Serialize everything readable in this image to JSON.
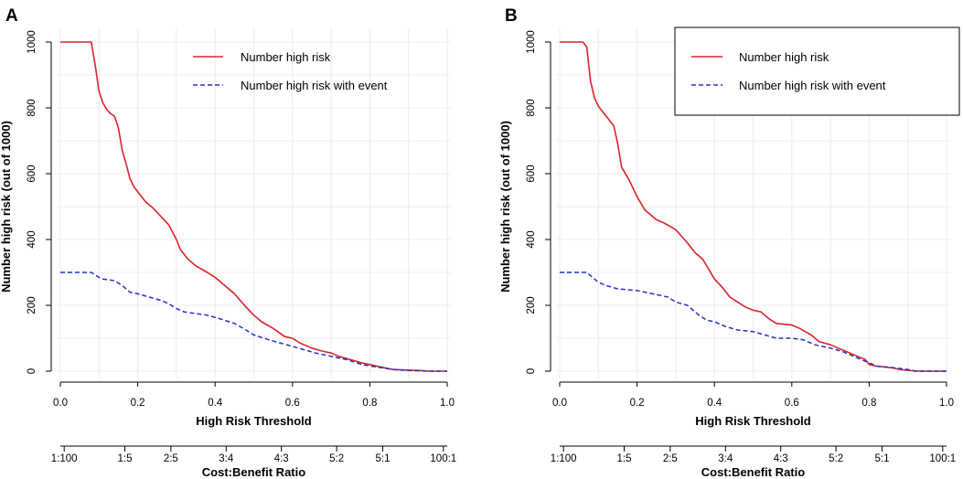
{
  "figure": {
    "y_axis_title": "Number high risk (out of 1000)",
    "x_axis_title": "High Risk Threshold",
    "cost_axis_title": "Cost:Benefit Ratio"
  },
  "chart_data": [
    {
      "type": "line",
      "panel_label": "A",
      "legend_box": false,
      "legend": [
        "Number high risk",
        "Number high risk with event"
      ],
      "xlabel": "High Risk Threshold",
      "ylabel": "Number high risk (out of 1000)",
      "xlim": [
        0,
        1
      ],
      "ylim": [
        0,
        1000
      ],
      "x_ticks": [
        "0.0",
        "0.2",
        "0.4",
        "0.6",
        "0.8",
        "1.0"
      ],
      "y_ticks": [
        "0",
        "200",
        "400",
        "600",
        "800",
        "1000"
      ],
      "cost_ticks": [
        "1:100",
        "1:5",
        "2:5",
        "3:4",
        "4:3",
        "5:2",
        "5:1",
        "100:1"
      ],
      "series": [
        {
          "name": "Number high risk",
          "color": "#d9232a",
          "style": "solid",
          "points": [
            [
              0,
              1000
            ],
            [
              0.05,
              1000
            ],
            [
              0.08,
              1000
            ],
            [
              0.09,
              930
            ],
            [
              0.1,
              850
            ],
            [
              0.11,
              815
            ],
            [
              0.12,
              795
            ],
            [
              0.13,
              782
            ],
            [
              0.14,
              775
            ],
            [
              0.15,
              740
            ],
            [
              0.16,
              670
            ],
            [
              0.17,
              630
            ],
            [
              0.18,
              585
            ],
            [
              0.19,
              560
            ],
            [
              0.2,
              545
            ],
            [
              0.22,
              515
            ],
            [
              0.24,
              495
            ],
            [
              0.26,
              470
            ],
            [
              0.28,
              445
            ],
            [
              0.3,
              400
            ],
            [
              0.31,
              370
            ],
            [
              0.33,
              340
            ],
            [
              0.35,
              320
            ],
            [
              0.38,
              300
            ],
            [
              0.4,
              285
            ],
            [
              0.42,
              265
            ],
            [
              0.45,
              235
            ],
            [
              0.48,
              195
            ],
            [
              0.5,
              170
            ],
            [
              0.52,
              150
            ],
            [
              0.55,
              130
            ],
            [
              0.58,
              105
            ],
            [
              0.6,
              100
            ],
            [
              0.62,
              85
            ],
            [
              0.65,
              70
            ],
            [
              0.68,
              60
            ],
            [
              0.7,
              55
            ],
            [
              0.72,
              45
            ],
            [
              0.75,
              35
            ],
            [
              0.78,
              25
            ],
            [
              0.8,
              20
            ],
            [
              0.83,
              12
            ],
            [
              0.86,
              5
            ],
            [
              0.9,
              3
            ],
            [
              0.93,
              2
            ],
            [
              0.95,
              0
            ],
            [
              1.0,
              0
            ]
          ]
        },
        {
          "name": "Number high risk with event",
          "color": "#2531c4",
          "style": "dashed",
          "points": [
            [
              0,
              300
            ],
            [
              0.05,
              300
            ],
            [
              0.08,
              300
            ],
            [
              0.1,
              285
            ],
            [
              0.11,
              280
            ],
            [
              0.14,
              275
            ],
            [
              0.16,
              260
            ],
            [
              0.18,
              240
            ],
            [
              0.2,
              235
            ],
            [
              0.23,
              225
            ],
            [
              0.26,
              215
            ],
            [
              0.28,
              205
            ],
            [
              0.3,
              190
            ],
            [
              0.32,
              180
            ],
            [
              0.35,
              175
            ],
            [
              0.38,
              170
            ],
            [
              0.41,
              160
            ],
            [
              0.45,
              145
            ],
            [
              0.48,
              125
            ],
            [
              0.5,
              110
            ],
            [
              0.54,
              95
            ],
            [
              0.57,
              85
            ],
            [
              0.6,
              75
            ],
            [
              0.63,
              65
            ],
            [
              0.66,
              55
            ],
            [
              0.7,
              45
            ],
            [
              0.74,
              35
            ],
            [
              0.78,
              20
            ],
            [
              0.82,
              12
            ],
            [
              0.86,
              5
            ],
            [
              0.9,
              2
            ],
            [
              0.95,
              0
            ],
            [
              1.0,
              0
            ]
          ]
        }
      ]
    },
    {
      "type": "line",
      "panel_label": "B",
      "legend_box": true,
      "legend": [
        "Number high risk",
        "Number high risk with event"
      ],
      "xlabel": "High Risk Threshold",
      "ylabel": "Number high risk (out of 1000)",
      "xlim": [
        0,
        1
      ],
      "ylim": [
        0,
        1000
      ],
      "x_ticks": [
        "0.0",
        "0.2",
        "0.4",
        "0.6",
        "0.8",
        "1.0"
      ],
      "y_ticks": [
        "0",
        "200",
        "400",
        "600",
        "800",
        "1000"
      ],
      "cost_ticks": [
        "1:100",
        "1:5",
        "2:5",
        "3:4",
        "4:3",
        "5:2",
        "5:1",
        "100:1"
      ],
      "series": [
        {
          "name": "Number high risk",
          "color": "#d9232a",
          "style": "solid",
          "points": [
            [
              0,
              1000
            ],
            [
              0.06,
              1000
            ],
            [
              0.07,
              985
            ],
            [
              0.08,
              880
            ],
            [
              0.09,
              830
            ],
            [
              0.1,
              805
            ],
            [
              0.12,
              775
            ],
            [
              0.14,
              745
            ],
            [
              0.15,
              690
            ],
            [
              0.16,
              620
            ],
            [
              0.18,
              580
            ],
            [
              0.2,
              530
            ],
            [
              0.22,
              490
            ],
            [
              0.25,
              460
            ],
            [
              0.27,
              450
            ],
            [
              0.3,
              430
            ],
            [
              0.33,
              390
            ],
            [
              0.35,
              360
            ],
            [
              0.37,
              340
            ],
            [
              0.4,
              280
            ],
            [
              0.42,
              255
            ],
            [
              0.44,
              225
            ],
            [
              0.46,
              210
            ],
            [
              0.48,
              195
            ],
            [
              0.5,
              185
            ],
            [
              0.52,
              180
            ],
            [
              0.54,
              160
            ],
            [
              0.56,
              145
            ],
            [
              0.6,
              140
            ],
            [
              0.62,
              130
            ],
            [
              0.65,
              110
            ],
            [
              0.67,
              90
            ],
            [
              0.7,
              80
            ],
            [
              0.72,
              70
            ],
            [
              0.75,
              55
            ],
            [
              0.77,
              45
            ],
            [
              0.79,
              35
            ],
            [
              0.8,
              20
            ],
            [
              0.82,
              15
            ],
            [
              0.86,
              10
            ],
            [
              0.88,
              5
            ],
            [
              0.92,
              0
            ],
            [
              1.0,
              0
            ]
          ]
        },
        {
          "name": "Number high risk with event",
          "color": "#2531c4",
          "style": "dashed",
          "points": [
            [
              0,
              300
            ],
            [
              0.07,
              300
            ],
            [
              0.08,
              290
            ],
            [
              0.1,
              270
            ],
            [
              0.12,
              260
            ],
            [
              0.15,
              250
            ],
            [
              0.2,
              245
            ],
            [
              0.24,
              235
            ],
            [
              0.28,
              225
            ],
            [
              0.3,
              210
            ],
            [
              0.33,
              200
            ],
            [
              0.36,
              170
            ],
            [
              0.38,
              155
            ],
            [
              0.4,
              150
            ],
            [
              0.43,
              135
            ],
            [
              0.46,
              125
            ],
            [
              0.5,
              120
            ],
            [
              0.53,
              110
            ],
            [
              0.56,
              100
            ],
            [
              0.6,
              100
            ],
            [
              0.63,
              95
            ],
            [
              0.66,
              80
            ],
            [
              0.68,
              75
            ],
            [
              0.7,
              70
            ],
            [
              0.73,
              60
            ],
            [
              0.76,
              45
            ],
            [
              0.78,
              35
            ],
            [
              0.8,
              25
            ],
            [
              0.82,
              15
            ],
            [
              0.85,
              12
            ],
            [
              0.88,
              8
            ],
            [
              0.9,
              5
            ],
            [
              0.92,
              0
            ],
            [
              1.0,
              0
            ]
          ]
        }
      ]
    }
  ]
}
